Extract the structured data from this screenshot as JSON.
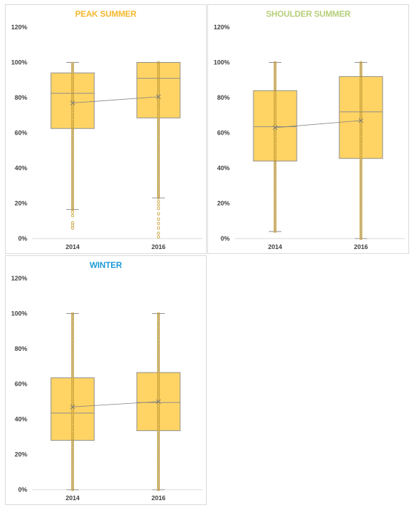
{
  "colors": {
    "box_fill": "#FFD464",
    "box_stroke": "#8C8C8C",
    "point": "#C9A23C",
    "mean_line": "#808080",
    "axis": "#D9D9D9",
    "tick": "#404040"
  },
  "chart_data": [
    {
      "type": "box",
      "title": "PEAK SUMMER",
      "title_color": "#F4B82E",
      "categories": [
        "2014",
        "2016"
      ],
      "y_ticks": [
        "0%",
        "20%",
        "40%",
        "60%",
        "80%",
        "100%",
        "120%"
      ],
      "ylim": [
        0,
        120
      ],
      "boxes": [
        {
          "category": "2014",
          "min": 16.5,
          "q1": 62.5,
          "median": 82.5,
          "q3": 94,
          "max": 100,
          "mean": 77,
          "outliers": [
            6,
            7.5,
            9,
            13,
            15
          ]
        },
        {
          "category": "2016",
          "min": 23,
          "q1": 68.5,
          "median": 91,
          "q3": 100,
          "max": 100,
          "mean": 80.5,
          "outliers": [
            1,
            3,
            6,
            8.5,
            11,
            14,
            17,
            19,
            21
          ]
        }
      ]
    },
    {
      "type": "box",
      "title": "SHOULDER SUMMER",
      "title_color": "#B5CF7A",
      "categories": [
        "2014",
        "2016"
      ],
      "y_ticks": [
        "0%",
        "20%",
        "40%",
        "60%",
        "80%",
        "100%",
        "120%"
      ],
      "ylim": [
        0,
        120
      ],
      "boxes": [
        {
          "category": "2014",
          "min": 4,
          "q1": 44,
          "median": 63.5,
          "q3": 84,
          "max": 100,
          "mean": 63,
          "outliers": []
        },
        {
          "category": "2016",
          "min": 0,
          "q1": 45.5,
          "median": 72,
          "q3": 92,
          "max": 100,
          "mean": 67,
          "outliers": []
        }
      ]
    },
    {
      "type": "box",
      "title": "WINTER",
      "title_color": "#1E9BD7",
      "categories": [
        "2014",
        "2016"
      ],
      "y_ticks": [
        "0%",
        "20%",
        "40%",
        "60%",
        "80%",
        "100%",
        "120%"
      ],
      "ylim": [
        0,
        120
      ],
      "boxes": [
        {
          "category": "2014",
          "min": 0,
          "q1": 28,
          "median": 43.5,
          "q3": 63.5,
          "max": 100,
          "mean": 47,
          "outliers": []
        },
        {
          "category": "2016",
          "min": 0,
          "q1": 33.5,
          "median": 49.5,
          "q3": 66.5,
          "max": 100,
          "mean": 50,
          "outliers": []
        }
      ]
    }
  ]
}
